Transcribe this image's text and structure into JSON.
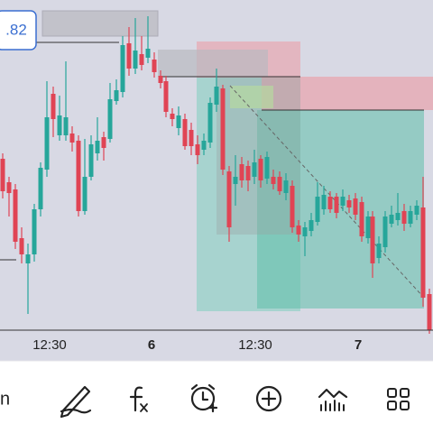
{
  "price_label": ".82",
  "time_axis": [
    "12:30",
    "6",
    "12:30",
    "7"
  ],
  "toolbar": {
    "left_partial": "n"
  }
}
